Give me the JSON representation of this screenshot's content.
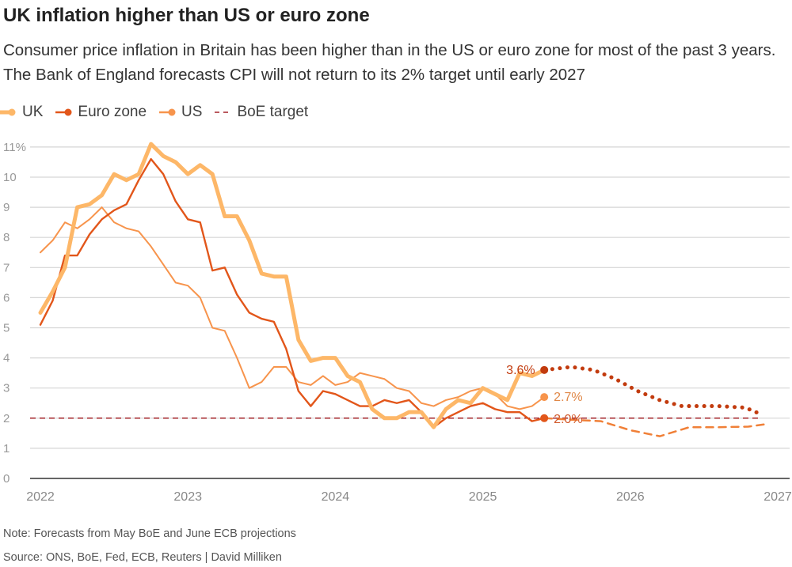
{
  "title": "UK inflation higher than US or euro zone",
  "subtitle": "Consumer price inflation in Britain has been higher than in the US or euro zone for most of the past 3 years. The Bank of England forecasts CPI will not return to its 2% target until early 2027",
  "note": "Note: Forecasts from May BoE and June ECB projections",
  "source": "Source: ONS, BoE, Fed, ECB, Reuters | David Milliken",
  "colors": {
    "uk": "#fdb768",
    "uk_forecast": "#c23b0e",
    "euro": "#e2561a",
    "euro_forecast": "#f08038",
    "us": "#f7944c",
    "target": "#a3242a",
    "grid": "#d6d6d6",
    "axis": "#666666"
  },
  "chart_data": {
    "type": "line",
    "title": "UK inflation higher than US or euro zone",
    "xlabel": "",
    "ylabel": "",
    "xlim": [
      2022,
      2027
    ],
    "ylim": [
      0,
      11
    ],
    "grid": true,
    "legend_position": "top-left",
    "x_ticks": [
      "2022",
      "2023",
      "2024",
      "2025",
      "2026",
      "2027"
    ],
    "y_ticks": [
      "0",
      "1",
      "2",
      "3",
      "4",
      "5",
      "6",
      "7",
      "8",
      "9",
      "10",
      "11%"
    ],
    "start": "2022-01",
    "frequency": "monthly",
    "series": [
      {
        "name": "UK",
        "values": [
          5.5,
          6.2,
          7.0,
          9.0,
          9.1,
          9.4,
          10.1,
          9.9,
          10.1,
          11.1,
          10.7,
          10.5,
          10.1,
          10.4,
          10.1,
          8.7,
          8.7,
          7.9,
          6.8,
          6.7,
          6.7,
          4.6,
          3.9,
          4.0,
          4.0,
          3.4,
          3.2,
          2.3,
          2.0,
          2.0,
          2.2,
          2.2,
          1.7,
          2.3,
          2.6,
          2.5,
          3.0,
          2.8,
          2.6,
          3.5,
          3.4,
          3.6
        ],
        "end_label": "3.6%"
      },
      {
        "name": "Euro zone",
        "values": [
          5.1,
          5.9,
          7.4,
          7.4,
          8.1,
          8.6,
          8.9,
          9.1,
          9.9,
          10.6,
          10.1,
          9.2,
          8.6,
          8.5,
          6.9,
          7.0,
          6.1,
          5.5,
          5.3,
          5.2,
          4.3,
          2.9,
          2.4,
          2.9,
          2.8,
          2.6,
          2.4,
          2.4,
          2.6,
          2.5,
          2.6,
          2.2,
          1.7,
          2.0,
          2.2,
          2.4,
          2.5,
          2.3,
          2.2,
          2.2,
          1.9,
          2.0
        ],
        "end_label": "2.0%"
      },
      {
        "name": "US",
        "values": [
          7.5,
          7.9,
          8.5,
          8.3,
          8.6,
          9.0,
          8.5,
          8.3,
          8.2,
          7.7,
          7.1,
          6.5,
          6.4,
          6.0,
          5.0,
          4.9,
          4.0,
          3.0,
          3.2,
          3.7,
          3.7,
          3.2,
          3.1,
          3.4,
          3.1,
          3.2,
          3.5,
          3.4,
          3.3,
          3.0,
          2.9,
          2.5,
          2.4,
          2.6,
          2.7,
          2.9,
          3.0,
          2.8,
          2.4,
          2.3,
          2.4,
          2.7
        ],
        "end_label": "2.7%"
      }
    ],
    "forecasts": [
      {
        "series": "UK",
        "style": "dotted",
        "points": [
          [
            2025.42,
            3.6
          ],
          [
            2025.6,
            3.7
          ],
          [
            2025.75,
            3.6
          ],
          [
            2025.9,
            3.3
          ],
          [
            2026.05,
            2.9
          ],
          [
            2026.2,
            2.6
          ],
          [
            2026.35,
            2.4
          ],
          [
            2026.6,
            2.4
          ],
          [
            2026.78,
            2.35
          ],
          [
            2026.9,
            2.1
          ]
        ]
      },
      {
        "series": "Euro zone",
        "style": "dashed",
        "points": [
          [
            2025.42,
            2.0
          ],
          [
            2025.6,
            1.95
          ],
          [
            2025.8,
            1.9
          ],
          [
            2026.0,
            1.6
          ],
          [
            2026.2,
            1.4
          ],
          [
            2026.4,
            1.7
          ],
          [
            2026.6,
            1.7
          ],
          [
            2026.8,
            1.72
          ],
          [
            2026.92,
            1.8
          ]
        ]
      }
    ],
    "reference_lines": [
      {
        "name": "BoE target",
        "y": 2,
        "style": "dashed"
      }
    ]
  }
}
